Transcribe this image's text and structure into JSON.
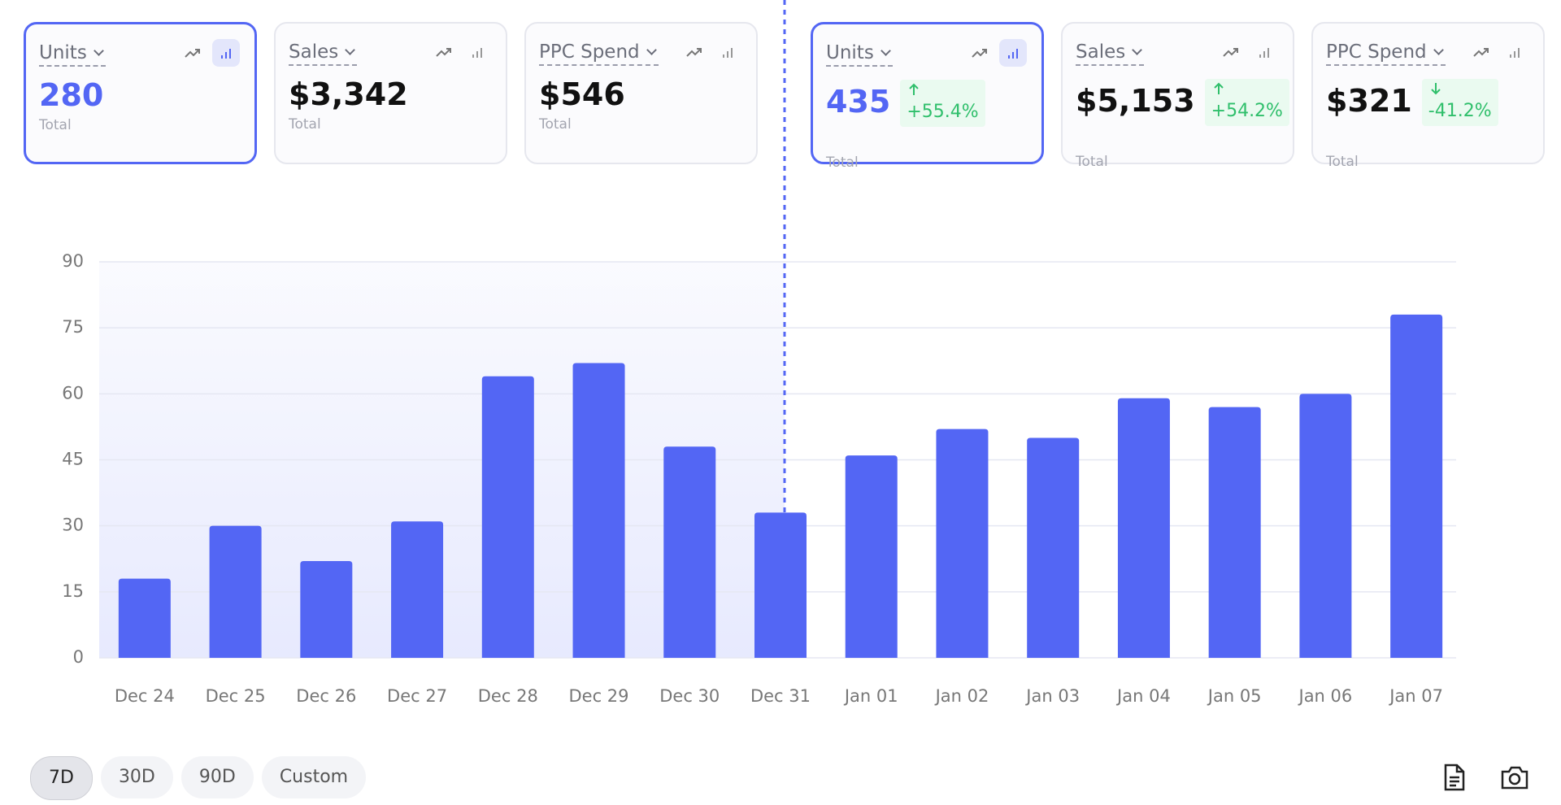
{
  "cards_left": [
    {
      "label": "Units",
      "value": "280",
      "caption": "Total"
    },
    {
      "label": "Sales",
      "value": "$3,342",
      "caption": "Total"
    },
    {
      "label": "PPC Spend",
      "value": "$546",
      "caption": "Total"
    }
  ],
  "cards_right": [
    {
      "label": "Units",
      "value": "435",
      "change": "+55.4%",
      "caption": "Total"
    },
    {
      "label": "Sales",
      "value": "$5,153",
      "change": "+54.2%",
      "caption": "Total"
    },
    {
      "label": "PPC Spend",
      "value": "$321",
      "change": "-41.2%",
      "caption": "Total"
    }
  ],
  "chart_data": {
    "type": "bar",
    "categories": [
      "Dec 24",
      "Dec 25",
      "Dec 26",
      "Dec 27",
      "Dec 28",
      "Dec 29",
      "Dec 30",
      "Dec 31",
      "Jan 01",
      "Jan 02",
      "Jan 03",
      "Jan 04",
      "Jan 05",
      "Jan 06",
      "Jan 07"
    ],
    "values": [
      18,
      30,
      22,
      31,
      64,
      67,
      48,
      33,
      46,
      52,
      50,
      59,
      57,
      60,
      78
    ],
    "color": "#5366f4",
    "ylim": [
      0,
      90
    ],
    "yticks": [
      0,
      15,
      30,
      45,
      60,
      75,
      90
    ],
    "grid": true
  },
  "range_buttons": [
    "7D",
    "30D",
    "90D",
    "Custom"
  ]
}
